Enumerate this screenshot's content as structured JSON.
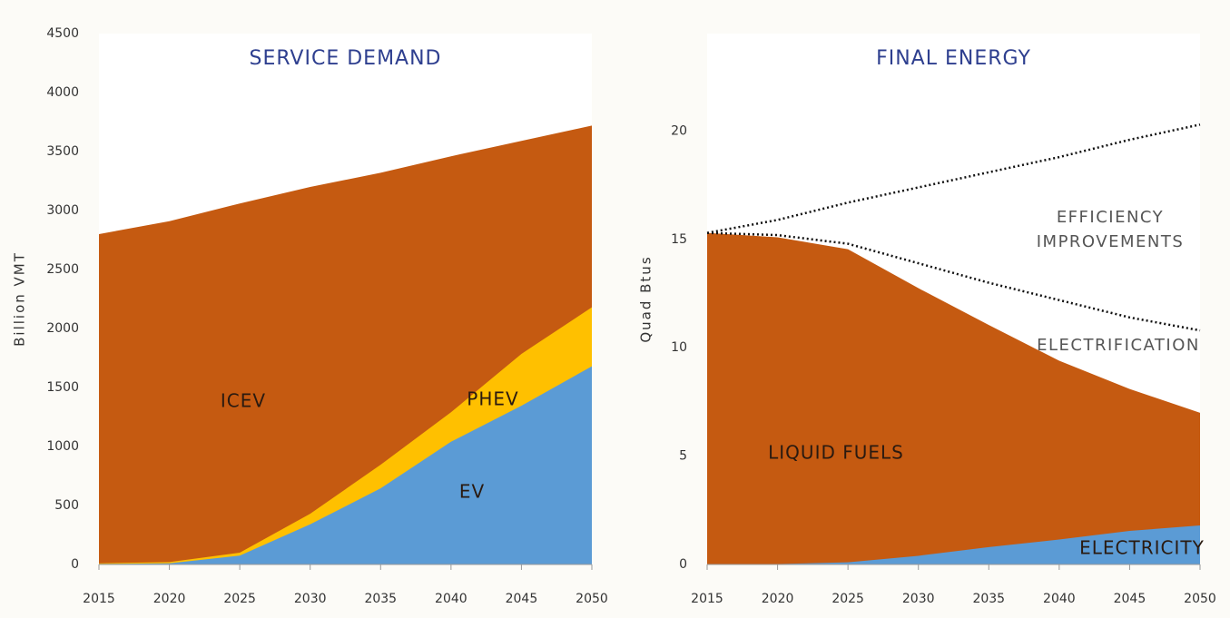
{
  "chart_data": [
    {
      "type": "area",
      "stacked": true,
      "title": "SERVICE DEMAND",
      "ylabel": "Billion VMT",
      "x": [
        2015,
        2020,
        2025,
        2030,
        2035,
        2040,
        2045,
        2050
      ],
      "xlim": [
        2015,
        2050
      ],
      "xticks": [
        2015,
        2020,
        2025,
        2030,
        2035,
        2040,
        2045,
        2050
      ],
      "ylim": [
        0,
        4500
      ],
      "yticks": [
        0,
        500,
        1000,
        1500,
        2000,
        2500,
        3000,
        3500,
        4000,
        4500
      ],
      "series": [
        {
          "name": "EV",
          "color": "#5b9bd5",
          "values": [
            5,
            10,
            75,
            340,
            645,
            1040,
            1345,
            1680
          ]
        },
        {
          "name": "PHEV",
          "color": "#ffc000",
          "values": [
            5,
            10,
            25,
            90,
            200,
            250,
            440,
            500
          ]
        },
        {
          "name": "ICEV",
          "color": "#c55a11",
          "values": [
            2790,
            2890,
            2960,
            2770,
            2475,
            2170,
            1805,
            1540
          ]
        }
      ]
    },
    {
      "type": "area",
      "stacked": true,
      "title": "FINAL ENERGY",
      "ylabel": "Quad Btus",
      "x": [
        2015,
        2020,
        2025,
        2030,
        2035,
        2040,
        2045,
        2050
      ],
      "xlim": [
        2015,
        2050
      ],
      "xticks": [
        2015,
        2020,
        2025,
        2030,
        2035,
        2040,
        2045,
        2050
      ],
      "ylim": [
        0,
        24.5
      ],
      "yticks": [
        0,
        5,
        10,
        15,
        20
      ],
      "series": [
        {
          "name": "ELECTRICITY",
          "color": "#5b9bd5",
          "values": [
            0,
            0.02,
            0.1,
            0.4,
            0.8,
            1.15,
            1.55,
            1.8
          ]
        },
        {
          "name": "LIQUID FUELS",
          "color": "#c55a11",
          "values": [
            15.3,
            15.08,
            14.45,
            12.35,
            10.25,
            8.25,
            6.55,
            5.2
          ]
        }
      ],
      "lines": [
        {
          "color": "#111111",
          "style": "dotted",
          "values": [
            15.3,
            15.9,
            16.7,
            17.4,
            18.1,
            18.8,
            19.6,
            20.3
          ]
        },
        {
          "color": "#111111",
          "style": "dotted",
          "values": [
            15.3,
            15.2,
            14.8,
            13.9,
            13.0,
            12.2,
            11.4,
            10.8
          ]
        }
      ],
      "annotations": [
        "EFFICIENCY",
        "IMPROVEMENTS",
        "ELECTRIFICATION"
      ]
    }
  ]
}
